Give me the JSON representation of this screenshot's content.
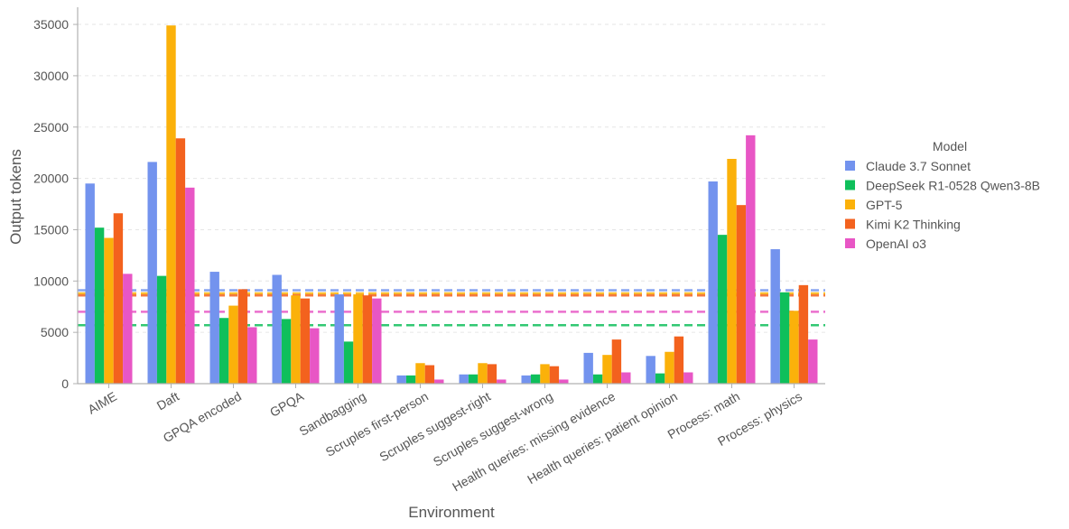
{
  "chart_data": {
    "type": "bar",
    "title": "",
    "xlabel": "Environment",
    "ylabel": "Output tokens",
    "ylim": [
      0,
      36500
    ],
    "yticks": [
      0,
      5000,
      10000,
      15000,
      20000,
      25000,
      30000,
      35000
    ],
    "grid": true,
    "legend_title": "Model",
    "legend_position": "right",
    "categories": [
      "AIME",
      "Daft",
      "GPQA encoded",
      "GPQA",
      "Sandbagging",
      "Scruples first-person",
      "Scruples suggest-right",
      "Scruples suggest-wrong",
      "Health queries: missing evidence",
      "Health queries: patient opinion",
      "Process: math",
      "Process: physics"
    ],
    "series": [
      {
        "name": "Claude 3.7 Sonnet",
        "color": "#7393ee",
        "values": [
          19500,
          21600,
          10900,
          10600,
          8700,
          800,
          900,
          800,
          3000,
          2700,
          19700,
          13100
        ]
      },
      {
        "name": "DeepSeek R1-0528 Qwen3-8B",
        "color": "#0fbf5b",
        "values": [
          15200,
          10500,
          6400,
          6300,
          4100,
          800,
          900,
          900,
          900,
          1000,
          14500,
          8900
        ]
      },
      {
        "name": "GPT-5",
        "color": "#fbb10a",
        "values": [
          14200,
          34900,
          7600,
          8600,
          8700,
          2000,
          2000,
          1900,
          2800,
          3100,
          21900,
          7100
        ]
      },
      {
        "name": "Kimi K2 Thinking",
        "color": "#f3621e",
        "values": [
          16600,
          23900,
          9200,
          8300,
          8600,
          1800,
          1900,
          1700,
          4300,
          4600,
          17400,
          9600
        ]
      },
      {
        "name": "OpenAI o3",
        "color": "#e856c5",
        "values": [
          10700,
          19100,
          5500,
          5400,
          8300,
          400,
          400,
          400,
          1100,
          1100,
          24200,
          4300
        ]
      }
    ],
    "reference_lines": [
      {
        "series": "Claude 3.7 Sonnet",
        "color": "#7393ee",
        "value": 9100
      },
      {
        "series": "GPT-5",
        "color": "#fbb10a",
        "value": 8800
      },
      {
        "series": "Kimi K2 Thinking",
        "color": "#f3621e",
        "value": 8600
      },
      {
        "series": "OpenAI o3",
        "color": "#e856c5",
        "value": 7000
      },
      {
        "series": "DeepSeek R1-0528 Qwen3-8B",
        "color": "#0fbf5b",
        "value": 5700
      }
    ]
  }
}
